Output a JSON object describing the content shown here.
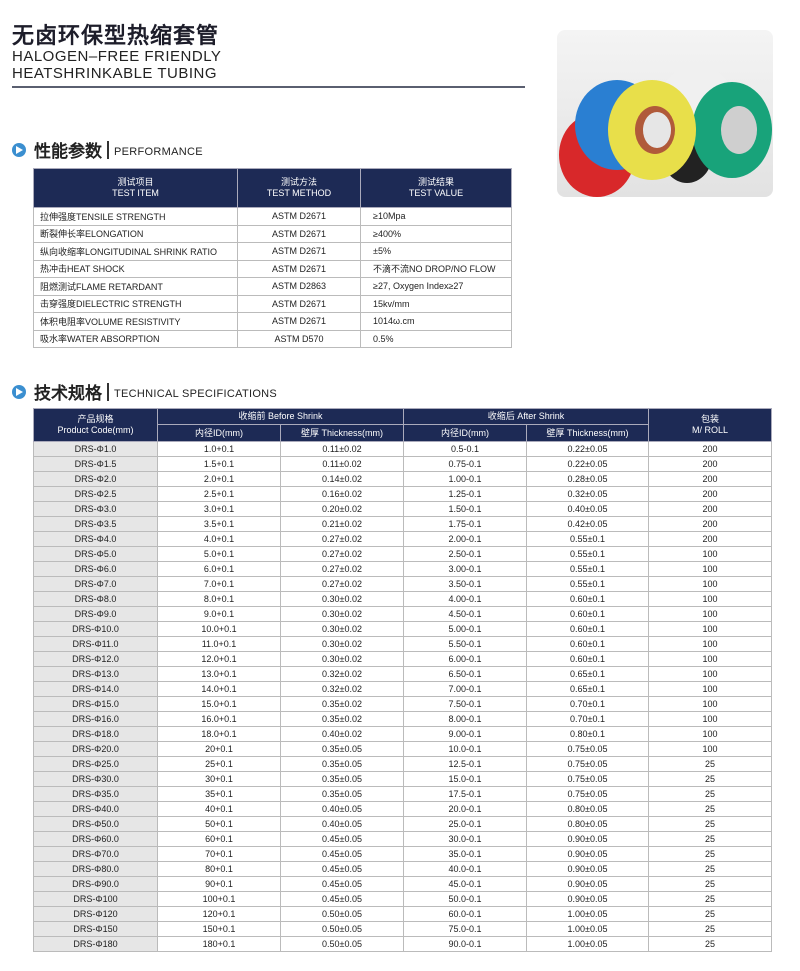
{
  "header": {
    "title_cn": "无卤环保型热缩套管",
    "title_en_1": "HALOGEN–FREE FRIENDLY",
    "title_en_2": "HEATSHRINKABLE TUBING"
  },
  "photo": {
    "colors": [
      "#d8282a",
      "#2a7fd2",
      "#e8df4a",
      "#18a37a",
      "#f0f0f0",
      "#222222"
    ]
  },
  "performance": {
    "section_cn": "性能参数",
    "section_en": "PERFORMANCE",
    "headers": [
      {
        "cn": "测试项目",
        "en": "TEST ITEM"
      },
      {
        "cn": "测试方法",
        "en": "TEST METHOD"
      },
      {
        "cn": "测试结果",
        "en": "TEST VALUE"
      }
    ],
    "rows": [
      [
        "拉伸强度TENSILE STRENGTH",
        "ASTM D2671",
        "≥10Mpa"
      ],
      [
        "断裂伸长率ELONGATION",
        "ASTM D2671",
        "≥400%"
      ],
      [
        "纵向收缩率LONGITUDINAL SHRINK RATIO",
        "ASTM D2671",
        "±5%"
      ],
      [
        "热冲击HEAT SHOCK",
        "ASTM D2671",
        "不滴不流NO DROP/NO FLOW"
      ],
      [
        "阻燃测试FLAME RETARDANT",
        "ASTM D2863",
        "≥27, Oxygen Index≥27"
      ],
      [
        "击穿强度DIELECTRIC STRENGTH",
        "ASTM D2671",
        "15kv/mm"
      ],
      [
        "体积电阻率VOLUME RESISTIVITY",
        "ASTM D2671",
        "1014ω.cm"
      ],
      [
        "吸水率WATER ABSORPTION",
        "ASTM D570",
        "0.5%"
      ]
    ]
  },
  "specs": {
    "section_cn": "技术规格",
    "section_en": "TECHNICAL SPECIFICATIONS",
    "h_code_cn": "产品规格",
    "h_code_en": "Product Code(mm)",
    "h_before": "收缩前 Before Shrink",
    "h_after": "收缩后 After Shrink",
    "h_pack_cn": "包装",
    "h_pack_en": "M/ ROLL",
    "h_id": "内径ID(mm)",
    "h_thk": "壁厚 Thickness(mm)",
    "rows": [
      [
        "DRS-Φ1.0",
        "1.0+0.1",
        "0.11±0.02",
        "0.5-0.1",
        "0.22±0.05",
        "200"
      ],
      [
        "DRS-Φ1.5",
        "1.5+0.1",
        "0.11±0.02",
        "0.75-0.1",
        "0.22±0.05",
        "200"
      ],
      [
        "DRS-Φ2.0",
        "2.0+0.1",
        "0.14±0.02",
        "1.00-0.1",
        "0.28±0.05",
        "200"
      ],
      [
        "DRS-Φ2.5",
        "2.5+0.1",
        "0.16±0.02",
        "1.25-0.1",
        "0.32±0.05",
        "200"
      ],
      [
        "DRS-Φ3.0",
        "3.0+0.1",
        "0.20±0.02",
        "1.50-0.1",
        "0.40±0.05",
        "200"
      ],
      [
        "DRS-Φ3.5",
        "3.5+0.1",
        "0.21±0.02",
        "1.75-0.1",
        "0.42±0.05",
        "200"
      ],
      [
        "DRS-Φ4.0",
        "4.0+0.1",
        "0.27±0.02",
        "2.00-0.1",
        "0.55±0.1",
        "200"
      ],
      [
        "DRS-Φ5.0",
        "5.0+0.1",
        "0.27±0.02",
        "2.50-0.1",
        "0.55±0.1",
        "100"
      ],
      [
        "DRS-Φ6.0",
        "6.0+0.1",
        "0.27±0.02",
        "3.00-0.1",
        "0.55±0.1",
        "100"
      ],
      [
        "DRS-Φ7.0",
        "7.0+0.1",
        "0.27±0.02",
        "3.50-0.1",
        "0.55±0.1",
        "100"
      ],
      [
        "DRS-Φ8.0",
        "8.0+0.1",
        "0.30±0.02",
        "4.00-0.1",
        "0.60±0.1",
        "100"
      ],
      [
        "DRS-Φ9.0",
        "9.0+0.1",
        "0.30±0.02",
        "4.50-0.1",
        "0.60±0.1",
        "100"
      ],
      [
        "DRS-Φ10.0",
        "10.0+0.1",
        "0.30±0.02",
        "5.00-0.1",
        "0.60±0.1",
        "100"
      ],
      [
        "DRS-Φ11.0",
        "11.0+0.1",
        "0.30±0.02",
        "5.50-0.1",
        "0.60±0.1",
        "100"
      ],
      [
        "DRS-Φ12.0",
        "12.0+0.1",
        "0.30±0.02",
        "6.00-0.1",
        "0.60±0.1",
        "100"
      ],
      [
        "DRS-Φ13.0",
        "13.0+0.1",
        "0.32±0.02",
        "6.50-0.1",
        "0.65±0.1",
        "100"
      ],
      [
        "DRS-Φ14.0",
        "14.0+0.1",
        "0.32±0.02",
        "7.00-0.1",
        "0.65±0.1",
        "100"
      ],
      [
        "DRS-Φ15.0",
        "15.0+0.1",
        "0.35±0.02",
        "7.50-0.1",
        "0.70±0.1",
        "100"
      ],
      [
        "DRS-Φ16.0",
        "16.0+0.1",
        "0.35±0.02",
        "8.00-0.1",
        "0.70±0.1",
        "100"
      ],
      [
        "DRS-Φ18.0",
        "18.0+0.1",
        "0.40±0.02",
        "9.00-0.1",
        "0.80±0.1",
        "100"
      ],
      [
        "DRS-Φ20.0",
        "20+0.1",
        "0.35±0.05",
        "10.0-0.1",
        "0.75±0.05",
        "100"
      ],
      [
        "DRS-Φ25.0",
        "25+0.1",
        "0.35±0.05",
        "12.5-0.1",
        "0.75±0.05",
        "25"
      ],
      [
        "DRS-Φ30.0",
        "30+0.1",
        "0.35±0.05",
        "15.0-0.1",
        "0.75±0.05",
        "25"
      ],
      [
        "DRS-Φ35.0",
        "35+0.1",
        "0.35±0.05",
        "17.5-0.1",
        "0.75±0.05",
        "25"
      ],
      [
        "DRS-Φ40.0",
        "40+0.1",
        "0.40±0.05",
        "20.0-0.1",
        "0.80±0.05",
        "25"
      ],
      [
        "DRS-Φ50.0",
        "50+0.1",
        "0.40±0.05",
        "25.0-0.1",
        "0.80±0.05",
        "25"
      ],
      [
        "DRS-Φ60.0",
        "60+0.1",
        "0.45±0.05",
        "30.0-0.1",
        "0.90±0.05",
        "25"
      ],
      [
        "DRS-Φ70.0",
        "70+0.1",
        "0.45±0.05",
        "35.0-0.1",
        "0.90±0.05",
        "25"
      ],
      [
        "DRS-Φ80.0",
        "80+0.1",
        "0.45±0.05",
        "40.0-0.1",
        "0.90±0.05",
        "25"
      ],
      [
        "DRS-Φ90.0",
        "90+0.1",
        "0.45±0.05",
        "45.0-0.1",
        "0.90±0.05",
        "25"
      ],
      [
        "DRS-Φ100",
        "100+0.1",
        "0.45±0.05",
        "50.0-0.1",
        "0.90±0.05",
        "25"
      ],
      [
        "DRS-Φ120",
        "120+0.1",
        "0.50±0.05",
        "60.0-0.1",
        "1.00±0.05",
        "25"
      ],
      [
        "DRS-Φ150",
        "150+0.1",
        "0.50±0.05",
        "75.0-0.1",
        "1.00±0.05",
        "25"
      ],
      [
        "DRS-Φ180",
        "180+0.1",
        "0.50±0.05",
        "90.0-0.1",
        "1.00±0.05",
        "25"
      ]
    ]
  }
}
